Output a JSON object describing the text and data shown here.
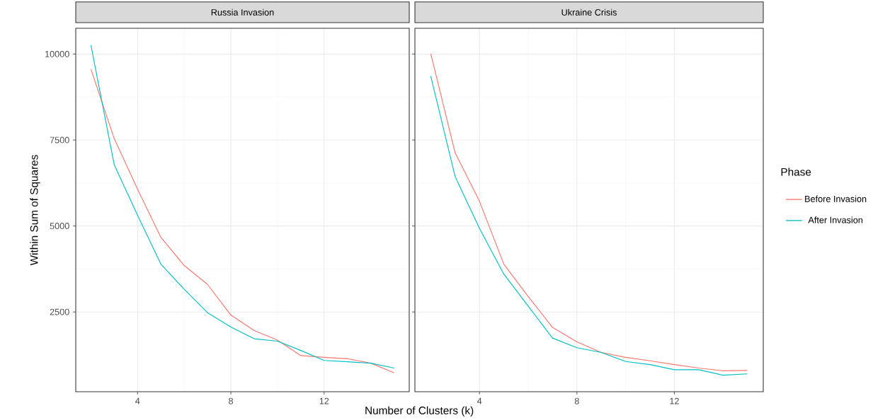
{
  "chart_data": [
    {
      "type": "line",
      "title": "Russia Invasion",
      "xlabel": "Number of Clusters (k)",
      "ylabel": "Within Sum of Squares",
      "x": [
        2,
        3,
        4,
        5,
        6,
        7,
        8,
        9,
        10,
        11,
        12,
        13,
        14,
        15
      ],
      "xlim": [
        1.35,
        15.65
      ],
      "ylim": [
        180,
        10750
      ],
      "xticks": [
        4,
        8,
        12
      ],
      "yticks": [
        2500,
        5000,
        7500,
        10000
      ],
      "grid": true,
      "series": [
        {
          "color": "#f8766d",
          "values": [
            9560,
            7540,
            6070,
            4670,
            3850,
            3300,
            2410,
            1960,
            1680,
            1230,
            1180,
            1140,
            1010,
            730
          ]
        },
        {
          "color": "#00bfc4",
          "values": [
            10260,
            6780,
            5310,
            3890,
            3160,
            2480,
            2060,
            1720,
            1650,
            1380,
            1090,
            1050,
            1010,
            870
          ]
        }
      ]
    },
    {
      "type": "line",
      "title": "Ukraine Crisis",
      "legend_title": "Phase",
      "x": [
        2,
        3,
        4,
        5,
        6,
        7,
        8,
        9,
        10,
        11,
        12,
        13,
        14,
        15
      ],
      "xlim": [
        1.35,
        15.65
      ],
      "ylim": [
        180,
        10750
      ],
      "xticks": [
        4,
        8,
        12
      ],
      "yticks": [
        2500,
        5000,
        7500,
        10000
      ],
      "grid": true,
      "legend": "right",
      "tick_labels": "x",
      "series": [
        {
          "name": "Before Invasion",
          "color": "#f8766d",
          "values": [
            10010,
            7130,
            5720,
            3890,
            2950,
            2050,
            1630,
            1320,
            1180,
            1080,
            970,
            870,
            790,
            800
          ]
        },
        {
          "name": "After Invasion",
          "color": "#00bfc4",
          "values": [
            9360,
            6440,
            4930,
            3600,
            2670,
            1740,
            1460,
            1320,
            1060,
            970,
            820,
            820,
            660,
            700
          ]
        }
      ]
    }
  ]
}
